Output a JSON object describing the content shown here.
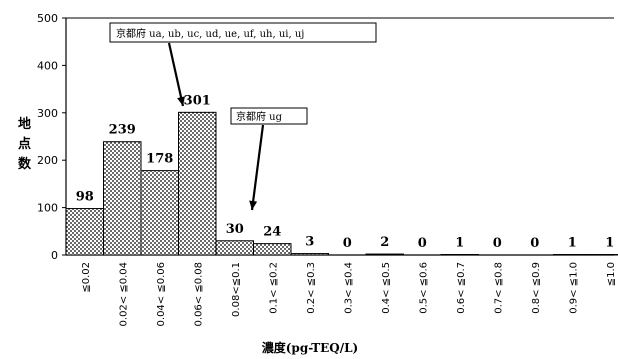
{
  "chart_data": {
    "type": "bar",
    "ylabel": "地点数",
    "xlabel": "濃度(pg-TEQ/L)",
    "ylim": [
      0,
      500
    ],
    "yticks": [
      "0",
      "100",
      "200",
      "300",
      "400",
      "500"
    ],
    "categories": [
      "≦0.02",
      "0.02< ≦0.04",
      "0.04< ≦0.06",
      "0.06< ≦0.08",
      "0.08<≦0.1",
      "0.1< ≦0.2",
      "0.2< ≦0.3",
      "0.3< ≦0.4",
      "0.4< ≦0.5",
      "0.5< ≦0.6",
      "0.6< ≦0.7",
      "0.7< ≦0.8",
      "0.8< ≦0.9",
      "0.9< ≦1.0",
      "≦1.0"
    ],
    "values": [
      98,
      239,
      178,
      301,
      30,
      24,
      3,
      0,
      2,
      0,
      1,
      0,
      0,
      1,
      1
    ],
    "data_labels": [
      "98",
      "239",
      "178",
      "301",
      "30",
      "24",
      "3",
      "0",
      "2",
      "0",
      "1",
      "0",
      "0",
      "1",
      "1"
    ],
    "annotations": [
      {
        "text": "京都府  ua, ub, uc, ud, ue, uf, uh, ui, uj",
        "target_category": 3
      },
      {
        "text": "京都府  ug",
        "target_category": 4
      }
    ],
    "bar_fill": "dotted",
    "grid": false
  }
}
